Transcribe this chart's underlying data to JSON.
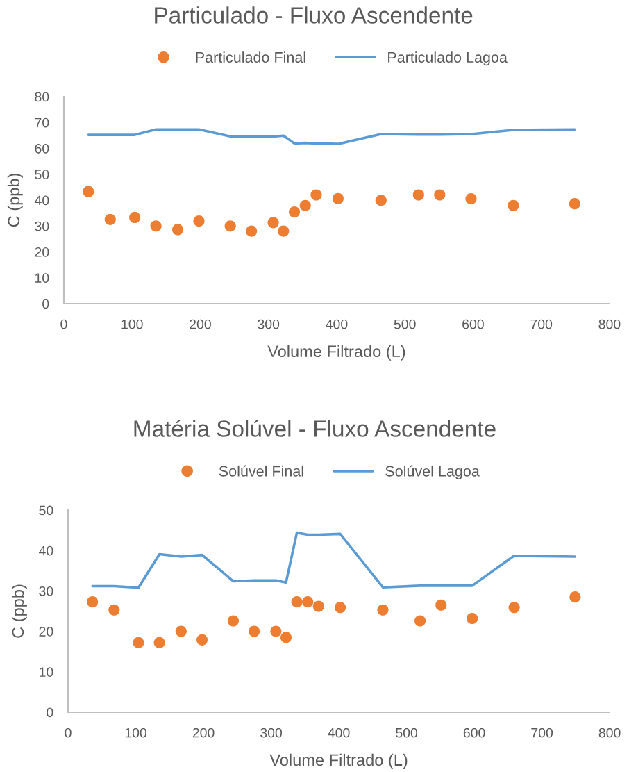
{
  "chart_data": [
    {
      "type": "scatter",
      "title": "Particulado - Fluxo Ascendente",
      "xlabel": "Volume Filtrado (L)",
      "ylabel": "C (ppb)",
      "x": [
        36,
        68,
        104,
        135,
        167,
        198,
        244,
        275,
        307,
        322,
        338,
        354,
        370,
        402,
        465,
        520,
        551,
        597,
        659,
        749
      ],
      "series": [
        {
          "name": "Particulado Final",
          "color": "#ed7d31",
          "marker": "circle",
          "values": [
            43.3,
            32.5,
            33.3,
            30.0,
            28.6,
            31.9,
            30.0,
            28.0,
            31.3,
            28.0,
            35.4,
            37.9,
            42.0,
            40.6,
            39.9,
            42.0,
            42.0,
            40.5,
            37.9,
            38.6
          ]
        },
        {
          "name": "Particulado Lagoa",
          "type": "line",
          "color": "#5b9bd5",
          "marker": "none",
          "line_style": "solid",
          "values": [
            65.2,
            65.2,
            65.2,
            67.3,
            67.3,
            67.3,
            64.6,
            64.6,
            64.6,
            64.9,
            61.9,
            62.1,
            61.9,
            61.7,
            65.5,
            65.3,
            65.3,
            65.5,
            67.1,
            67.3
          ]
        }
      ],
      "xlim": [
        0,
        800
      ],
      "xticks": [
        0,
        100,
        200,
        300,
        400,
        500,
        600,
        700,
        800
      ],
      "ylim": [
        0,
        80
      ],
      "yticks": [
        0,
        10,
        20,
        30,
        40,
        50,
        60,
        70,
        80
      ],
      "grid": false,
      "legend": "top"
    },
    {
      "type": "scatter",
      "title": "Matéria Solúvel - Fluxo Ascendente",
      "xlabel": "Volume Filtrado (L)",
      "ylabel": "C (ppb)",
      "x": [
        36,
        68,
        104,
        135,
        167,
        198,
        244,
        275,
        307,
        322,
        338,
        354,
        370,
        402,
        465,
        520,
        551,
        597,
        659,
        749
      ],
      "series": [
        {
          "name": "Solúvel Final",
          "color": "#ed7d31",
          "marker": "circle",
          "values": [
            27.3,
            25.3,
            17.2,
            17.2,
            20.0,
            17.9,
            22.6,
            20.0,
            20.0,
            18.5,
            27.3,
            27.3,
            26.2,
            25.9,
            25.3,
            22.6,
            26.5,
            23.2,
            25.9,
            28.5
          ]
        },
        {
          "name": "Solúvel Lagoa",
          "type": "line",
          "color": "#5b9bd5",
          "marker": "none",
          "line_style": "solid",
          "values": [
            31.2,
            31.2,
            30.8,
            39.1,
            38.5,
            38.9,
            32.4,
            32.6,
            32.6,
            32.1,
            44.4,
            43.9,
            43.9,
            44.1,
            30.9,
            31.3,
            31.3,
            31.3,
            38.7,
            38.5
          ]
        }
      ],
      "xlim": [
        0,
        800
      ],
      "xticks": [
        0,
        100,
        200,
        300,
        400,
        500,
        600,
        700,
        800
      ],
      "ylim": [
        0,
        50
      ],
      "yticks": [
        0,
        10,
        20,
        30,
        40,
        50
      ],
      "grid": false,
      "legend": "top"
    }
  ]
}
